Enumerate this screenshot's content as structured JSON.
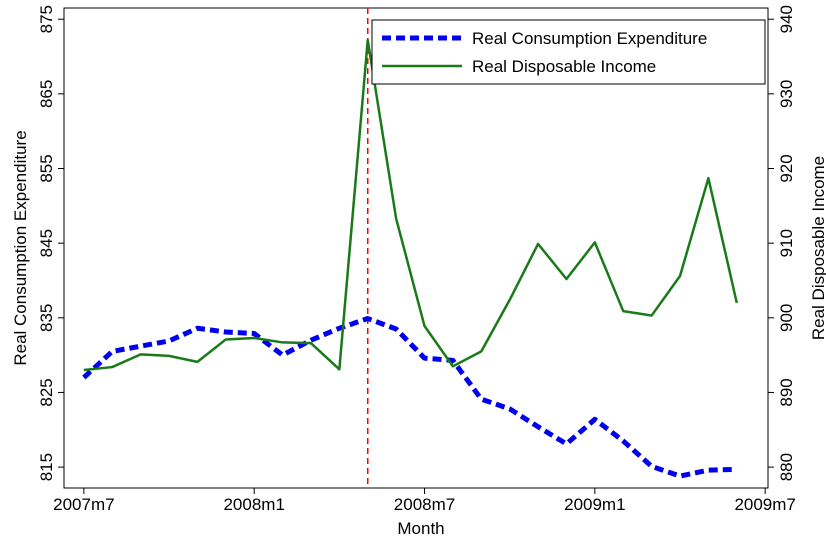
{
  "chart_data": {
    "type": "line",
    "x": [
      570,
      571,
      572,
      573,
      574,
      575,
      576,
      577,
      578,
      579,
      580,
      581,
      582,
      583,
      584,
      585,
      586,
      587,
      588,
      589,
      590,
      591,
      592,
      593
    ],
    "xlabel": "Month",
    "ylabel": "Real Consumption Expenditure",
    "y2label": "Real Disposable Income",
    "xlim": [
      569.3,
      594.1
    ],
    "xticks": [
      {
        "value": 570,
        "label": "2007m7"
      },
      {
        "value": 576,
        "label": "2008m1"
      },
      {
        "value": 582,
        "label": "2008m7"
      },
      {
        "value": 588,
        "label": "2009m1"
      },
      {
        "value": 594,
        "label": "2009m7"
      }
    ],
    "ylim": [
      812.2,
      876.5
    ],
    "yticks": [
      815,
      825,
      835,
      845,
      855,
      865,
      875
    ],
    "y2lim": [
      877.2,
      941.5
    ],
    "y2ticks": [
      880,
      890,
      900,
      910,
      920,
      930,
      940
    ],
    "vline": {
      "value": 580,
      "color": "#ff0000"
    },
    "series": [
      {
        "name": "Real Consumption Expenditure",
        "color": "#0000ee",
        "dash": true,
        "values": [
          827.0,
          830.5,
          831.2,
          831.9,
          833.6,
          833.1,
          832.9,
          830.0,
          832.0,
          833.6,
          834.9,
          833.5,
          829.6,
          829.3,
          824.1,
          822.8,
          820.4,
          818.1,
          821.4,
          818.5,
          815.1,
          813.8,
          814.6,
          814.7
        ]
      },
      {
        "name": "Real Disposable Income",
        "color": "#1a7a1a",
        "dash": false,
        "axis": "y2",
        "values": [
          893.0,
          893.4,
          895.1,
          894.9,
          894.1,
          897.1,
          897.3,
          896.7,
          896.6,
          893.1,
          937.2,
          913.3,
          898.9,
          893.5,
          895.5,
          902.4,
          909.9,
          905.2,
          910.1,
          900.9,
          900.3,
          905.6,
          918.7,
          902.0
        ]
      }
    ],
    "legend": "top-right"
  }
}
